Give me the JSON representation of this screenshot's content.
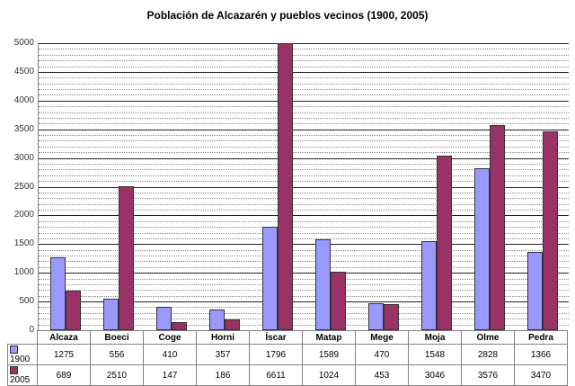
{
  "chart_data": {
    "type": "bar",
    "title": "Población de Alcazarén y pueblos vecinos (1900, 2005)",
    "xlabel": "",
    "ylabel": "",
    "ylim": [
      0,
      5000
    ],
    "yticks": [
      0,
      500,
      1000,
      1500,
      2000,
      2500,
      3000,
      3500,
      4000,
      4500,
      5000
    ],
    "grid": {
      "major": 500,
      "minor": 100
    },
    "legend_position": "data-table-left",
    "categories": [
      "Alcaza",
      "Boeci",
      "Coge",
      "Horni",
      "Íscar",
      "Matap",
      "Mege",
      "Moja",
      "Olme",
      "Pedra"
    ],
    "series": [
      {
        "name": "1900",
        "color": "#9999ff",
        "values": [
          1275,
          556,
          410,
          357,
          1796,
          1589,
          470,
          1548,
          2828,
          1366
        ]
      },
      {
        "name": "2005",
        "color": "#993366",
        "values": [
          689,
          2510,
          147,
          186,
          6611,
          1024,
          453,
          3046,
          3576,
          3470
        ]
      }
    ]
  }
}
